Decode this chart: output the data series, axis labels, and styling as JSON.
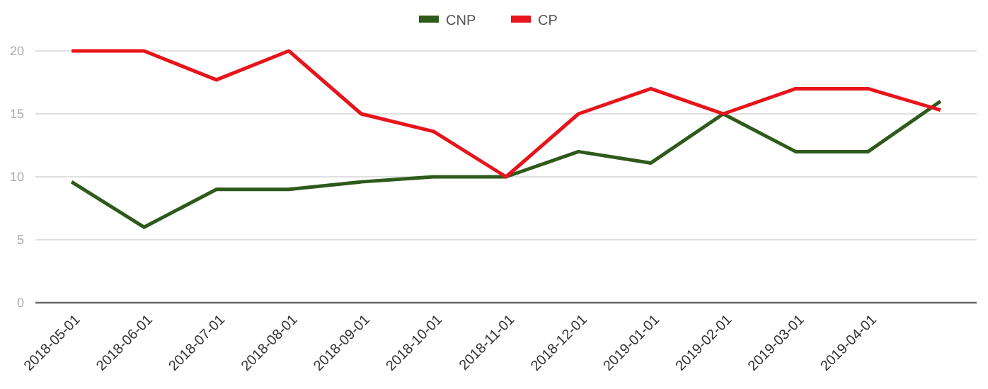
{
  "chart_data": {
    "type": "line",
    "categories": [
      "2018-05-01",
      "2018-06-01",
      "2018-07-01",
      "2018-08-01",
      "2018-09-01",
      "2018-10-01",
      "2018-11-01",
      "2018-12-01",
      "2019-01-01",
      "2019-02-01",
      "2019-03-01",
      "2019-04-01",
      null
    ],
    "series": [
      {
        "name": "CNP",
        "color": "#2e5a1c",
        "values": [
          9.6,
          6,
          9,
          9,
          9.6,
          10,
          10,
          12,
          11.1,
          15,
          12,
          12,
          16
        ]
      },
      {
        "name": "CP",
        "color": "#e8141b",
        "values": [
          20,
          20,
          17.7,
          20,
          15,
          13.6,
          10,
          15,
          17,
          15,
          17,
          17,
          15.3
        ]
      }
    ],
    "ylim": [
      0,
      20
    ],
    "yticks": [
      0,
      5,
      10,
      15,
      20
    ],
    "grid": "y",
    "legend": "top",
    "marker": "none",
    "line_style": "solid"
  }
}
